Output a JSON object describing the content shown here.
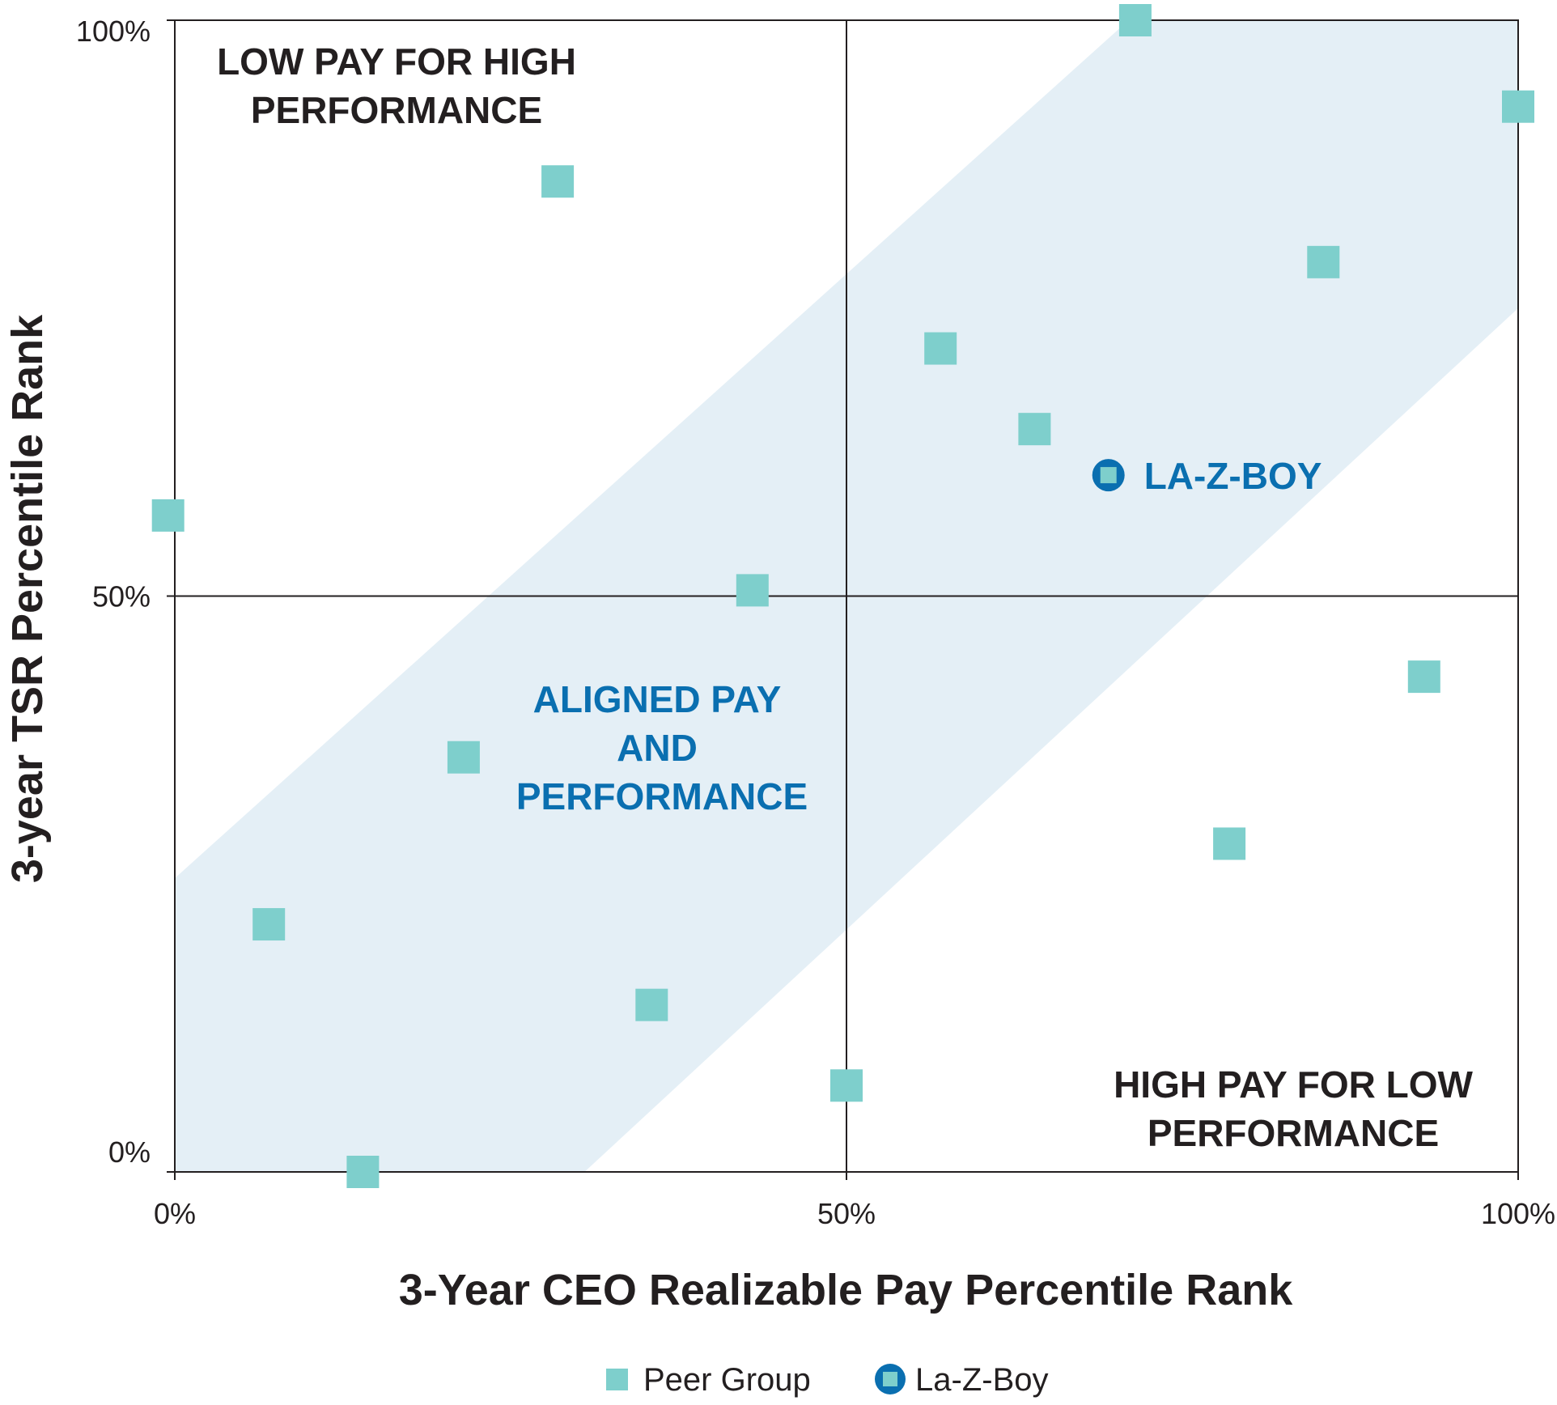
{
  "colors": {
    "peer": "#7ecfcc",
    "lazboy": "#0a6fb0",
    "band": "#e4eff6",
    "axis": "#231f20",
    "aligned_text": "#0a6fb0"
  },
  "chart_data": {
    "type": "scatter",
    "xlabel": "3-Year CEO Realizable Pay Percentile Rank",
    "ylabel": "3-year TSR Percentile Rank",
    "xlim": [
      0,
      100
    ],
    "ylim": [
      0,
      100
    ],
    "x_ticks": [
      "0%",
      "50%",
      "100%"
    ],
    "y_ticks": [
      "0%",
      "50%",
      "100%"
    ],
    "grid": "quadrant lines at 50%",
    "band": {
      "label_lines": [
        "ALIGNED PAY",
        "AND",
        "PERFORMANCE"
      ],
      "upper_edge": [
        [
          0,
          25.5
        ],
        [
          71,
          100
        ],
        [
          100,
          100
        ]
      ],
      "lower_edge": [
        [
          0,
          0
        ],
        [
          30.5,
          0
        ],
        [
          100,
          75
        ]
      ]
    },
    "quadrant_labels": {
      "top_left": [
        "LOW PAY FOR HIGH",
        "PERFORMANCE"
      ],
      "bottom_right": [
        "HIGH PAY FOR LOW",
        "PERFORMANCE"
      ]
    },
    "series": [
      {
        "name": "Peer Group",
        "marker": "square",
        "points": [
          {
            "x": 71.5,
            "y": 100
          },
          {
            "x": 100,
            "y": 92.5
          },
          {
            "x": 28.5,
            "y": 86
          },
          {
            "x": 85.5,
            "y": 79
          },
          {
            "x": 57,
            "y": 71.5
          },
          {
            "x": 64,
            "y": 64.5
          },
          {
            "x": -0.5,
            "y": 57
          },
          {
            "x": 43,
            "y": 50.5
          },
          {
            "x": 93,
            "y": 43
          },
          {
            "x": 21.5,
            "y": 36
          },
          {
            "x": 78.5,
            "y": 28.5
          },
          {
            "x": 7,
            "y": 21.5
          },
          {
            "x": 35.5,
            "y": 14.5
          },
          {
            "x": 50,
            "y": 7.5
          },
          {
            "x": 14,
            "y": 0
          }
        ]
      },
      {
        "name": "La-Z-Boy",
        "marker": "circle-square",
        "label": "LA-Z-BOY",
        "points": [
          {
            "x": 69.5,
            "y": 60.5
          }
        ]
      }
    ],
    "legend": {
      "placement": "bottom",
      "items": [
        {
          "label": "Peer Group",
          "marker": "square"
        },
        {
          "label": "La-Z-Boy",
          "marker": "circle-square"
        }
      ]
    }
  }
}
